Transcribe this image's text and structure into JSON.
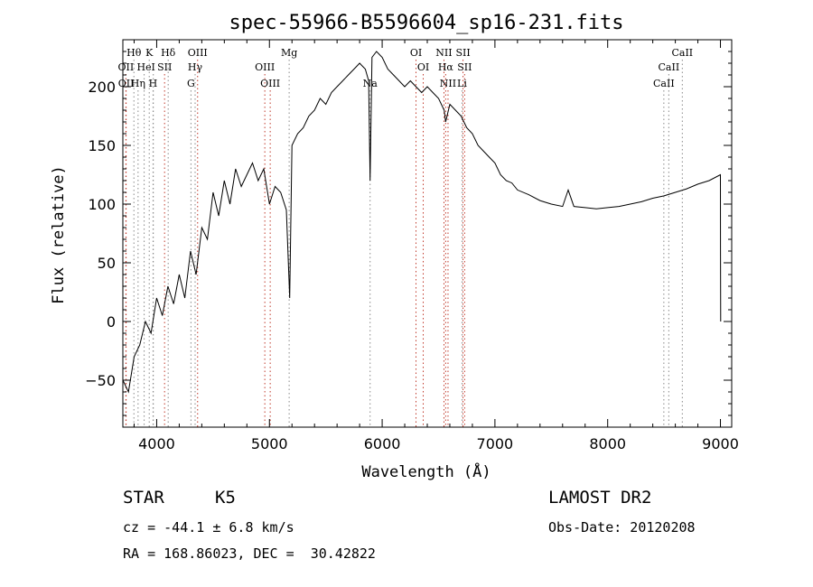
{
  "meta": {
    "object_class": "STAR",
    "subclass": "K5",
    "survey": "LAMOST DR2",
    "cz_text": "cz = -44.1 ± 6.8 km/s",
    "obs_date_text": "Obs-Date: 20120208",
    "coords_text": "RA = 168.86023, DEC =  30.42822"
  },
  "chart_data": {
    "type": "line",
    "title": "spec-55966-B5596604_sp16-231.fits",
    "xlabel": "Wavelength (Å)",
    "ylabel": "Flux (relative)",
    "xlim": [
      3700,
      9100
    ],
    "ylim": [
      -90,
      240
    ],
    "xticks": [
      4000,
      5000,
      6000,
      7000,
      8000,
      9000
    ],
    "yticks": [
      -50,
      0,
      50,
      100,
      150,
      200
    ],
    "grid": false,
    "legend": "none",
    "color": "#000000",
    "line_colors": {
      "emission": "#c0392b",
      "absorption": "#888888"
    },
    "series": [
      {
        "x": [
          3700,
          3750,
          3800,
          3850,
          3900,
          3950,
          4000,
          4050,
          4100,
          4150,
          4200,
          4250,
          4300,
          4350,
          4400,
          4450,
          4500,
          4550,
          4600,
          4650,
          4700,
          4750,
          4800,
          4850,
          4900,
          4950,
          5000,
          5050,
          5100,
          5150,
          5180,
          5200,
          5250,
          5300,
          5350,
          5400,
          5450,
          5500,
          5550,
          5600,
          5650,
          5700,
          5750,
          5800,
          5850,
          5880,
          5893,
          5910,
          5950,
          6000,
          6050,
          6100,
          6150,
          6200,
          6250,
          6300,
          6350,
          6400,
          6450,
          6500,
          6550,
          6563,
          6600,
          6650,
          6700,
          6750,
          6800,
          6850,
          6900,
          6950,
          7000,
          7050,
          7100,
          7150,
          7200,
          7300,
          7400,
          7500,
          7600,
          7650,
          7700,
          7800,
          7900,
          8000,
          8100,
          8200,
          8300,
          8400,
          8500,
          8600,
          8700,
          8800,
          8900,
          9000,
          9001,
          9002
        ],
        "y": [
          -50,
          -60,
          -30,
          -20,
          0,
          -10,
          20,
          5,
          30,
          15,
          40,
          20,
          60,
          40,
          80,
          70,
          110,
          90,
          120,
          100,
          130,
          115,
          125,
          135,
          120,
          130,
          100,
          115,
          110,
          95,
          20,
          150,
          160,
          165,
          175,
          180,
          190,
          185,
          195,
          200,
          205,
          210,
          215,
          220,
          215,
          205,
          120,
          225,
          230,
          225,
          215,
          210,
          205,
          200,
          205,
          200,
          195,
          200,
          195,
          190,
          180,
          170,
          185,
          180,
          175,
          165,
          160,
          150,
          145,
          140,
          135,
          125,
          120,
          118,
          112,
          108,
          103,
          100,
          98,
          112,
          98,
          97,
          96,
          97,
          98,
          100,
          102,
          105,
          107,
          110,
          113,
          117,
          120,
          125,
          60,
          0
        ]
      }
    ],
    "spectral_lines": [
      {
        "label": "Hθ",
        "wavelength": 3798,
        "kind": "absorption",
        "row": 0
      },
      {
        "label": "K",
        "wavelength": 3934,
        "kind": "absorption",
        "row": 0
      },
      {
        "label": "Hδ",
        "wavelength": 4102,
        "kind": "absorption",
        "row": 0
      },
      {
        "label": "OIII",
        "wavelength": 4363,
        "kind": "emission",
        "row": 0
      },
      {
        "label": "Mg",
        "wavelength": 5175,
        "kind": "absorption",
        "row": 0
      },
      {
        "label": "OI",
        "wavelength": 6300,
        "kind": "emission",
        "row": 0
      },
      {
        "label": "NII",
        "wavelength": 6548,
        "kind": "emission",
        "row": 0
      },
      {
        "label": "SII",
        "wavelength": 6717,
        "kind": "emission",
        "row": 0
      },
      {
        "label": "CaII",
        "wavelength": 8662,
        "kind": "absorption",
        "row": 0
      },
      {
        "label": "OII",
        "wavelength": 3727,
        "kind": "emission",
        "row": 1
      },
      {
        "label": "He",
        "wavelength": 3889,
        "kind": "absorption",
        "row": 1
      },
      {
        "label": "I",
        "wavelength": 3970,
        "kind": "absorption",
        "row": 1
      },
      {
        "label": "SII",
        "wavelength": 4070,
        "kind": "emission",
        "row": 1
      },
      {
        "label": "Hγ",
        "wavelength": 4341,
        "kind": "absorption",
        "row": 1
      },
      {
        "label": "OIII",
        "wavelength": 4959,
        "kind": "emission",
        "row": 1
      },
      {
        "label": "OI",
        "wavelength": 6364,
        "kind": "emission",
        "row": 1
      },
      {
        "label": "Hα",
        "wavelength": 6563,
        "kind": "emission",
        "row": 1
      },
      {
        "label": "SII",
        "wavelength": 6731,
        "kind": "emission",
        "row": 1
      },
      {
        "label": "CaII",
        "wavelength": 8542,
        "kind": "absorption",
        "row": 1
      },
      {
        "label": "OII",
        "wavelength": 3729,
        "kind": "emission",
        "row": 2
      },
      {
        "label": "Hη",
        "wavelength": 3835,
        "kind": "absorption",
        "row": 2
      },
      {
        "label": "H",
        "wavelength": 3968,
        "kind": "absorption",
        "row": 2
      },
      {
        "label": "G",
        "wavelength": 4304,
        "kind": "absorption",
        "row": 2
      },
      {
        "label": "OIII",
        "wavelength": 5007,
        "kind": "emission",
        "row": 2
      },
      {
        "label": "Na",
        "wavelength": 5893,
        "kind": "absorption",
        "row": 2
      },
      {
        "label": "NII",
        "wavelength": 6584,
        "kind": "emission",
        "row": 2
      },
      {
        "label": "Li",
        "wavelength": 6708,
        "kind": "absorption",
        "row": 2
      },
      {
        "label": "CaII",
        "wavelength": 8498,
        "kind": "absorption",
        "row": 2
      }
    ]
  }
}
